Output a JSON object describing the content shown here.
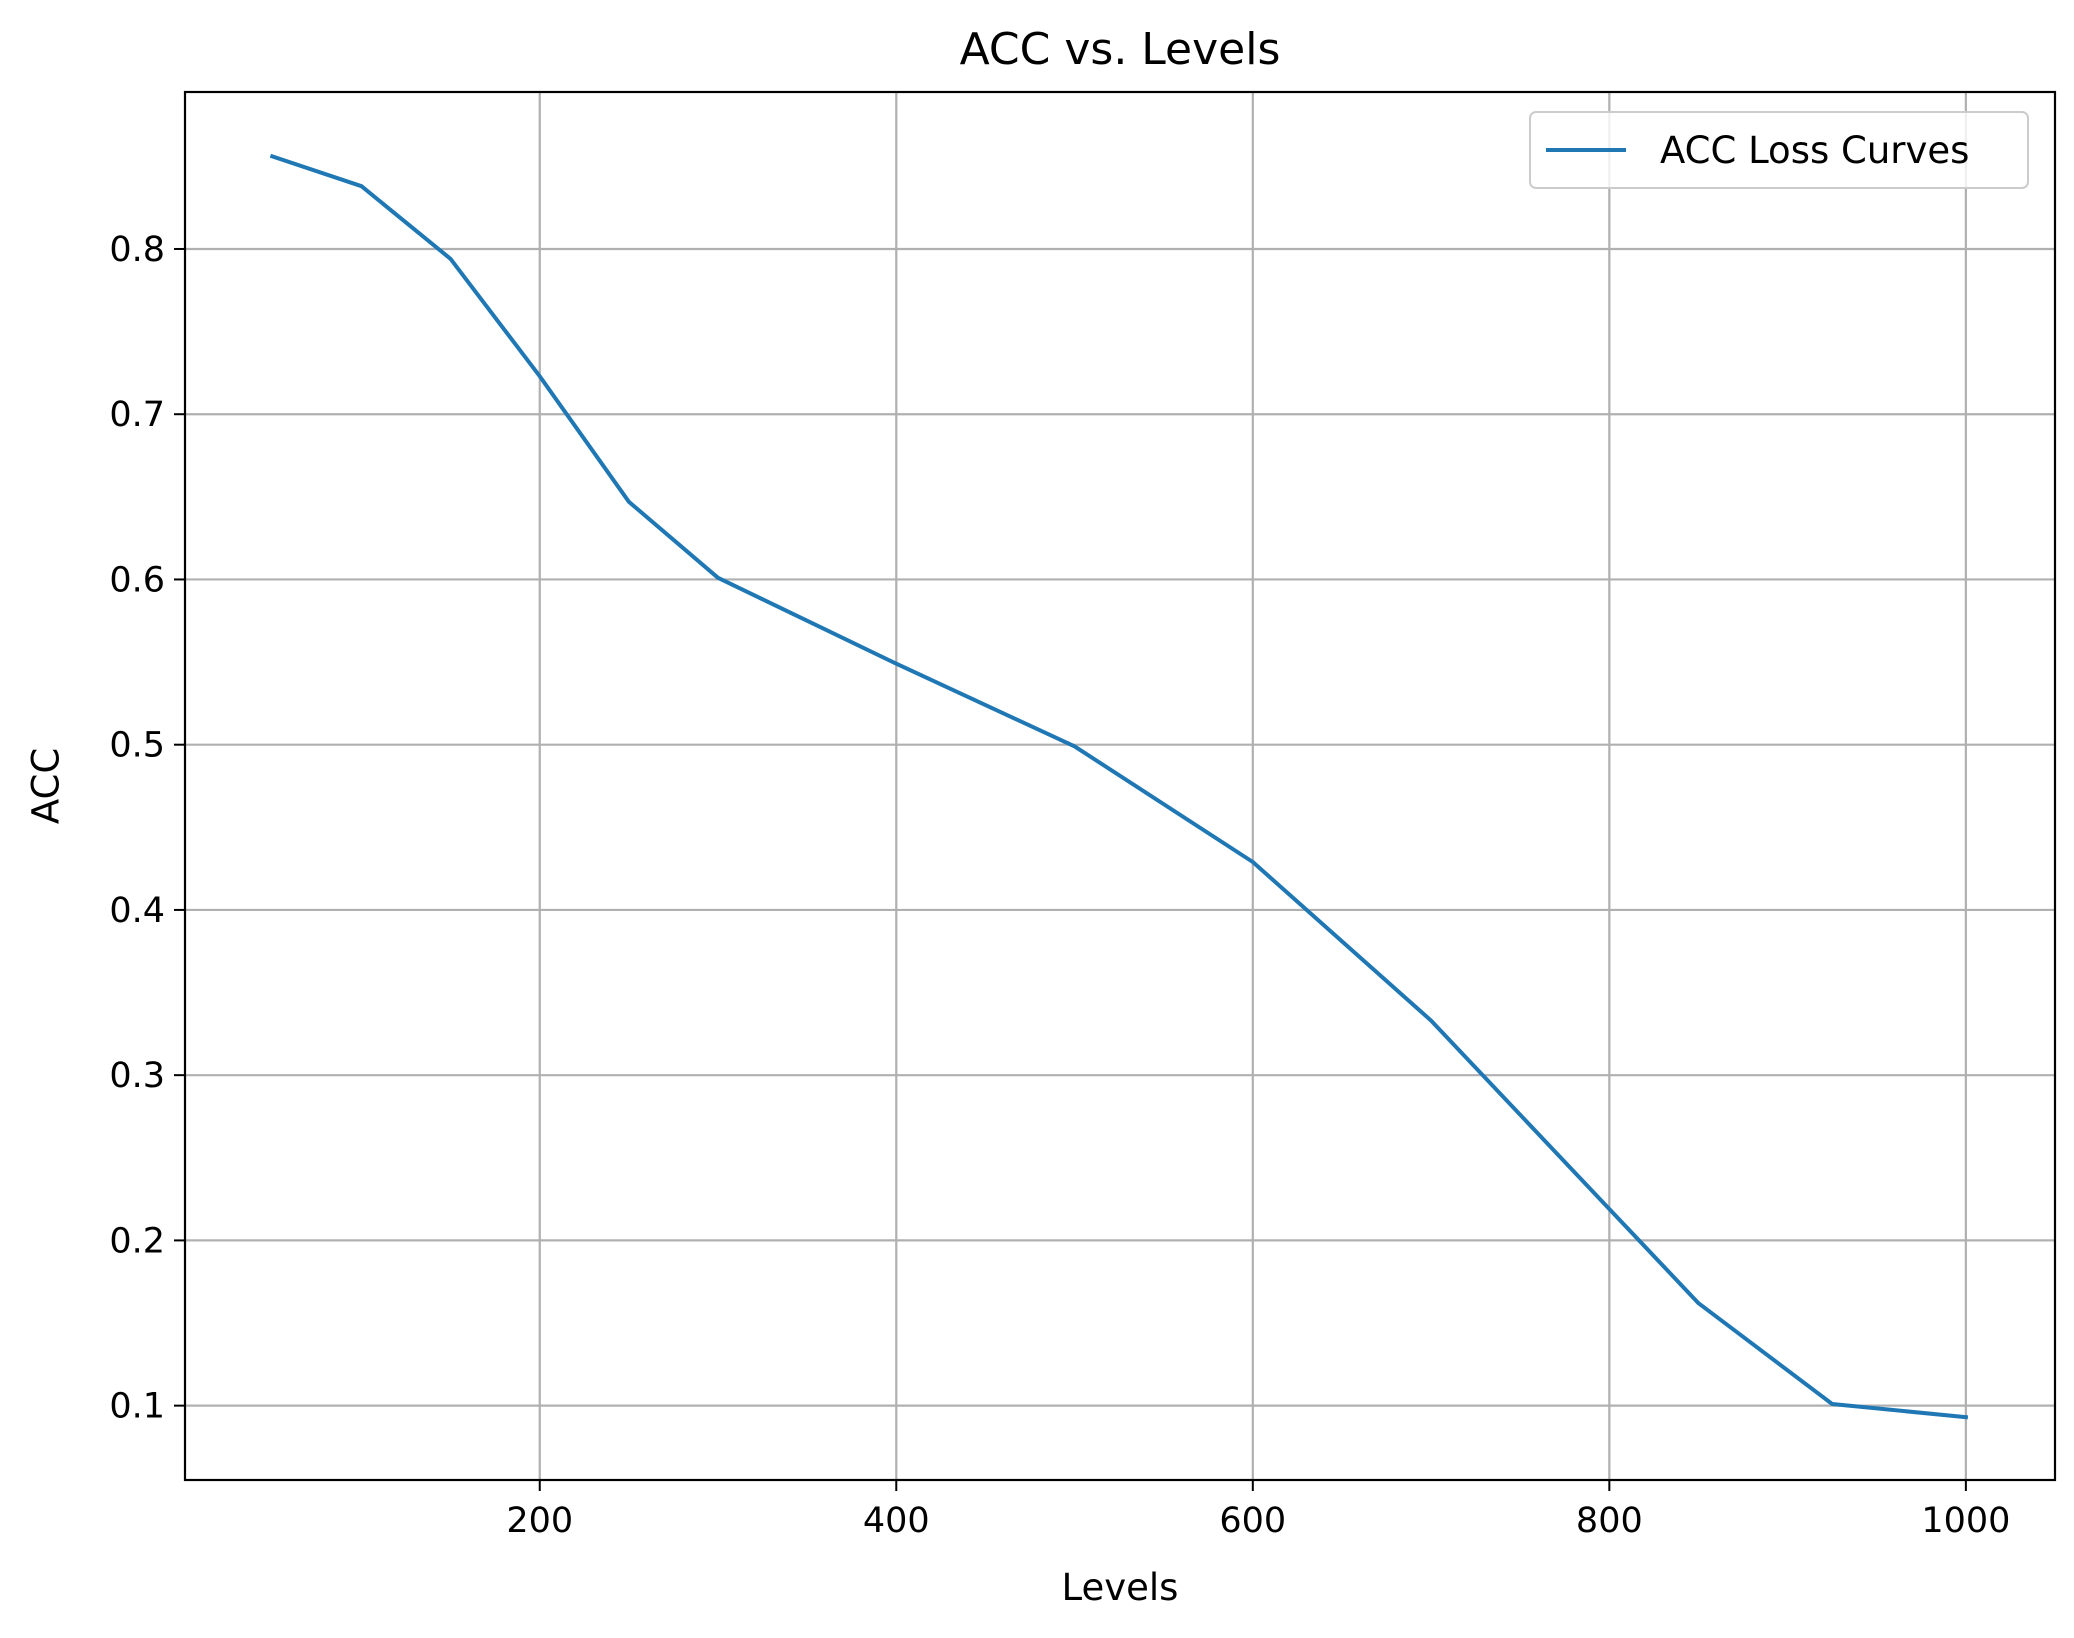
{
  "chart_data": {
    "type": "line",
    "title": "ACC vs. Levels",
    "xlabel": "Levels",
    "ylabel": "ACC",
    "xlim": [
      1,
      1050
    ],
    "ylim": [
      0.055,
      0.895
    ],
    "xticks": [
      200,
      400,
      600,
      800,
      1000
    ],
    "yticks": [
      0.1,
      0.2,
      0.3,
      0.4,
      0.5,
      0.6,
      0.7,
      0.8
    ],
    "grid": true,
    "legend_position": "top-right",
    "series": [
      {
        "name": "ACC Loss Curves",
        "color": "#1f77b4",
        "x": [
          50,
          100,
          150,
          200,
          250,
          300,
          400,
          500,
          600,
          700,
          800,
          850,
          925,
          1000
        ],
        "y": [
          0.856,
          0.838,
          0.794,
          0.723,
          0.647,
          0.601,
          0.549,
          0.499,
          0.429,
          0.333,
          0.219,
          0.162,
          0.101,
          0.093
        ]
      }
    ]
  }
}
